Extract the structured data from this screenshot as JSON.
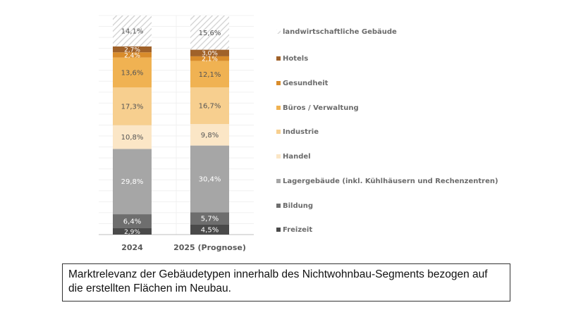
{
  "chart_data": {
    "type": "bar",
    "stacked": true,
    "categories": [
      "2024",
      "2025 (Prognose)"
    ],
    "ylim": [
      0,
      100
    ],
    "grid": true,
    "legend_position": "right",
    "series": [
      {
        "name": "Freizeit",
        "color": "#4a4a4a",
        "values": [
          2.9,
          4.5
        ],
        "labels": [
          "2,9%",
          "4,5%"
        ]
      },
      {
        "name": "Bildung",
        "color": "#6e6e6e",
        "values": [
          6.4,
          5.7
        ],
        "labels": [
          "6,4%",
          "5,7%"
        ]
      },
      {
        "name": "Lagergebäude (inkl. Kühlhäusern und Rechenzentren)",
        "color": "#a6a6a6",
        "values": [
          29.8,
          30.4
        ],
        "labels": [
          "29,8%",
          "30,4%"
        ]
      },
      {
        "name": "Handel",
        "color": "#fbe6c6",
        "values": [
          10.8,
          9.8
        ],
        "labels": [
          "10,8%",
          "9,8%"
        ]
      },
      {
        "name": "Industrie",
        "color": "#f7cf8f",
        "values": [
          17.3,
          16.7
        ],
        "labels": [
          "17,3%",
          "16,7%"
        ]
      },
      {
        "name": "Büros / Verwaltung",
        "color": "#f0b252",
        "values": [
          13.6,
          12.1
        ],
        "labels": [
          "13,6%",
          "12,1%"
        ]
      },
      {
        "name": "Gesundheit",
        "color": "#d98c2b",
        "values": [
          2.4,
          2.1
        ],
        "labels": [
          "2,4%",
          "2,1%"
        ]
      },
      {
        "name": "Hotels",
        "color": "#a0622a",
        "values": [
          2.7,
          3.0
        ],
        "labels": [
          "2,7%",
          "3,0%"
        ]
      },
      {
        "name": "landwirtschaftliche Gebäude",
        "color": "hatch",
        "values": [
          14.1,
          15.6
        ],
        "labels": [
          "14,1%",
          "15,6%"
        ]
      }
    ]
  },
  "caption": "Marktrelevanz der Gebäudetypen innerhalb des Nichtwohnbau-Segments bezogen auf die erstellten Flächen im Neubau."
}
